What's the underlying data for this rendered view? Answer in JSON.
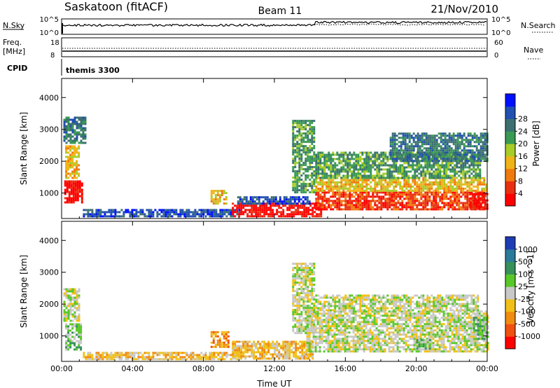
{
  "header": {
    "station": "Saskatoon (fitACF)",
    "beam": "Beam 11",
    "date": "21/Nov/2010"
  },
  "strips": {
    "nsky_label": "N.Sky",
    "nsky_ticks": [
      "10^5",
      "10^0"
    ],
    "nsearch_label": "N.Search",
    "nsearch_ticks": [
      "10^5",
      "10^0"
    ],
    "freq_label": "Freq.",
    "freq_unit": "[MHz]",
    "freq_ticks": [
      "18",
      "8"
    ],
    "nave_label": "Nave",
    "nave_ticks": [
      "60",
      "0"
    ],
    "cpid_label": "CPID",
    "cpid_value": "themis 3300"
  },
  "chart_data": [
    {
      "type": "heatmap",
      "ylabel": "Slant Range [km]",
      "ylim": [
        200,
        4600
      ],
      "yticks": [
        1000,
        2000,
        3000,
        4000
      ],
      "x_ticks": [
        "00:00",
        "04:00",
        "08:00",
        "12:00",
        "16:00",
        "20:00",
        "00:00"
      ],
      "xlim_hours": [
        0,
        24
      ],
      "colorbar": {
        "label": "Power [dB]",
        "ticks": [
          "4",
          "8",
          "12",
          "16",
          "20",
          "24",
          "28"
        ],
        "colors": [
          "#0010ff",
          "#2050b0",
          "#3c7070",
          "#3a9a54",
          "#a8cc28",
          "#f0b418",
          "#f07a10",
          "#e83010",
          "#ff0000"
        ]
      },
      "regions": [
        {
          "t0": 0.15,
          "t1": 1.2,
          "r0": 700,
          "r1": 1400,
          "level": 8
        },
        {
          "t0": 0.2,
          "t1": 1.0,
          "r0": 1500,
          "r1": 2500,
          "level": 5
        },
        {
          "t0": 0.1,
          "t1": 1.4,
          "r0": 2600,
          "r1": 3400,
          "level": 2
        },
        {
          "t0": 1.2,
          "t1": 10,
          "r0": 250,
          "r1": 500,
          "level": 1
        },
        {
          "t0": 8.4,
          "t1": 9.3,
          "r0": 700,
          "r1": 1100,
          "level": 5
        },
        {
          "t0": 9.6,
          "t1": 14.6,
          "r0": 300,
          "r1": 700,
          "level": 8
        },
        {
          "t0": 9.9,
          "t1": 14.0,
          "r0": 650,
          "r1": 900,
          "level": 1
        },
        {
          "t0": 14.3,
          "t1": 23.8,
          "r0": 500,
          "r1": 1050,
          "level": 7
        },
        {
          "t0": 14.3,
          "t1": 24.0,
          "r0": 1050,
          "r1": 1500,
          "level": 5
        },
        {
          "t0": 14.3,
          "t1": 23.6,
          "r0": 1500,
          "r1": 2300,
          "level": 3
        },
        {
          "t0": 13.0,
          "t1": 14.3,
          "r0": 1000,
          "r1": 3300,
          "level": 3
        },
        {
          "t0": 18.5,
          "t1": 24.0,
          "r0": 2000,
          "r1": 2900,
          "level": 2
        },
        {
          "t0": 23.0,
          "t1": 24.0,
          "r0": 500,
          "r1": 1000,
          "level": 8
        }
      ]
    },
    {
      "type": "heatmap",
      "ylabel": "Slant Range [km]",
      "xlabel": "Time UT",
      "ylim": [
        200,
        4600
      ],
      "yticks": [
        1000,
        2000,
        3000,
        4000
      ],
      "x_ticks": [
        "00:00",
        "04:00",
        "08:00",
        "12:00",
        "16:00",
        "20:00",
        "00:00"
      ],
      "xlim_hours": [
        0,
        24
      ],
      "colorbar": {
        "label": "Velocity [m s^-1]",
        "ticks": [
          "1000",
          "500",
          "100",
          "25",
          "-25",
          "-100",
          "-500",
          "-1000"
        ],
        "colors": [
          "#1e3cb4",
          "#2a7a9a",
          "#36905a",
          "#58c828",
          "#c8c8c8",
          "#f0c018",
          "#f08c10",
          "#f05010",
          "#ff0000"
        ]
      },
      "regions": [
        {
          "t0": 0.2,
          "t1": 1.1,
          "r0": 600,
          "r1": 1400,
          "level": 3
        },
        {
          "t0": 0.1,
          "t1": 1.0,
          "r0": 1500,
          "r1": 2500,
          "level": 4
        },
        {
          "t0": 1.2,
          "t1": 10.0,
          "r0": 250,
          "r1": 500,
          "level": 5
        },
        {
          "t0": 8.4,
          "t1": 9.4,
          "r0": 650,
          "r1": 1150,
          "level": 6
        },
        {
          "t0": 9.6,
          "t1": 14.2,
          "r0": 300,
          "r1": 850,
          "level": 5
        },
        {
          "t0": 13.8,
          "t1": 24.0,
          "r0": 500,
          "r1": 1800,
          "level": 4
        },
        {
          "t0": 13.0,
          "t1": 14.3,
          "r0": 1100,
          "r1": 3300,
          "level": 4
        },
        {
          "t0": 14.3,
          "t1": 23.5,
          "r0": 1800,
          "r1": 2300,
          "level": 4
        },
        {
          "t0": 20.0,
          "t1": 20.8,
          "r0": 600,
          "r1": 900,
          "level": 3
        },
        {
          "t0": 23.2,
          "t1": 24.0,
          "r0": 900,
          "r1": 1600,
          "level": 3
        }
      ]
    }
  ]
}
